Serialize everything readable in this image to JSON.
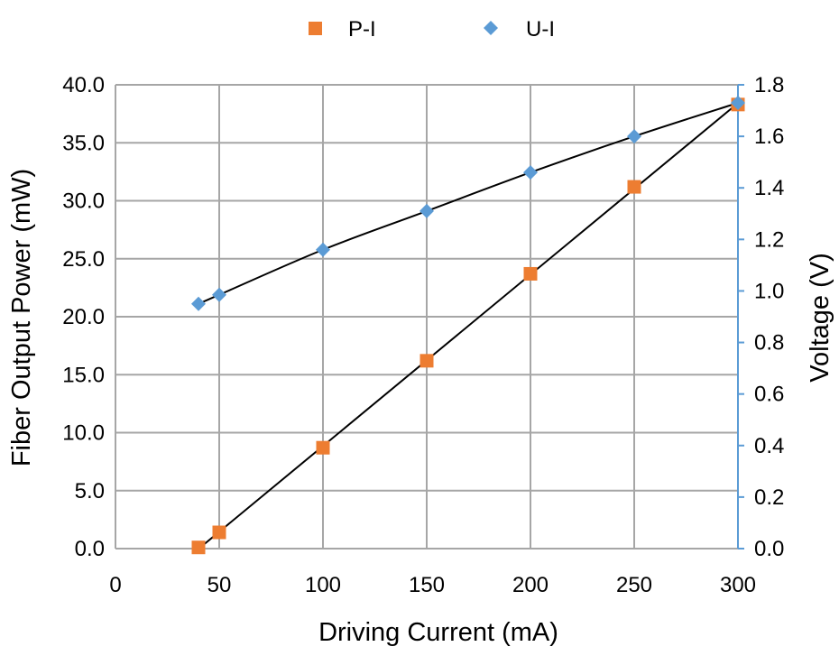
{
  "chart_data": {
    "type": "scatter",
    "title": "",
    "xlabel": "Driving Current (mA)",
    "ylabel": "Fiber Output Power (mW)",
    "y2label": "Voltage (V)",
    "xlim": [
      0,
      300
    ],
    "ylim": [
      0,
      40
    ],
    "y2lim": [
      0,
      1.8
    ],
    "x_ticks": [
      "0",
      "50",
      "100",
      "150",
      "200",
      "250",
      "300"
    ],
    "y_ticks": [
      "0.0",
      "5.0",
      "10.0",
      "15.0",
      "20.0",
      "25.0",
      "30.0",
      "35.0",
      "40.0"
    ],
    "y2_ticks": [
      "0.0",
      "0.2",
      "0.4",
      "0.6",
      "0.8",
      "1.0",
      "1.2",
      "1.4",
      "1.6",
      "1.8"
    ],
    "grid": true,
    "legend_position": "top-center",
    "series": [
      {
        "name": "P-I",
        "axis": "left",
        "marker": "square",
        "color": "#ED7D31",
        "x": [
          40,
          50,
          100,
          150,
          200,
          250,
          300
        ],
        "y": [
          0.1,
          1.4,
          8.7,
          16.2,
          23.7,
          31.2,
          38.3
        ],
        "trendline": "linear"
      },
      {
        "name": "U-I",
        "axis": "right",
        "marker": "diamond",
        "color": "#5B9BD5",
        "x": [
          40,
          50,
          100,
          150,
          200,
          250,
          300
        ],
        "y": [
          0.95,
          0.985,
          1.16,
          1.31,
          1.46,
          1.6,
          1.73
        ],
        "trendline": "smooth"
      }
    ],
    "colors": {
      "grid": "#A6A6A6",
      "trendline": "#000000",
      "right_axis": "#5B9BD5"
    }
  }
}
